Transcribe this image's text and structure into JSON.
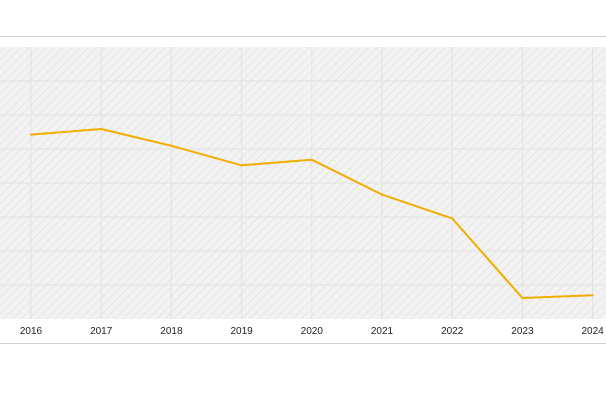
{
  "chart_data": {
    "type": "line",
    "title": "",
    "xlabel": "",
    "ylabel": "",
    "x": [
      "2016",
      "2017",
      "2018",
      "2019",
      "2020",
      "2021",
      "2022",
      "2023",
      "2024"
    ],
    "series": [
      {
        "values": [
          81,
          85,
          73,
          59,
          63,
          38,
          21,
          -36,
          -34
        ]
      }
    ],
    "ylim": [
      -36,
      85
    ],
    "grid": true,
    "legend": "none",
    "colors": {
      "line": "#f2ad00",
      "plot_background": "#f4f4f4",
      "hatch": "#dcdcdc",
      "frame": "#cccccc",
      "tick_text": "#222222"
    }
  }
}
